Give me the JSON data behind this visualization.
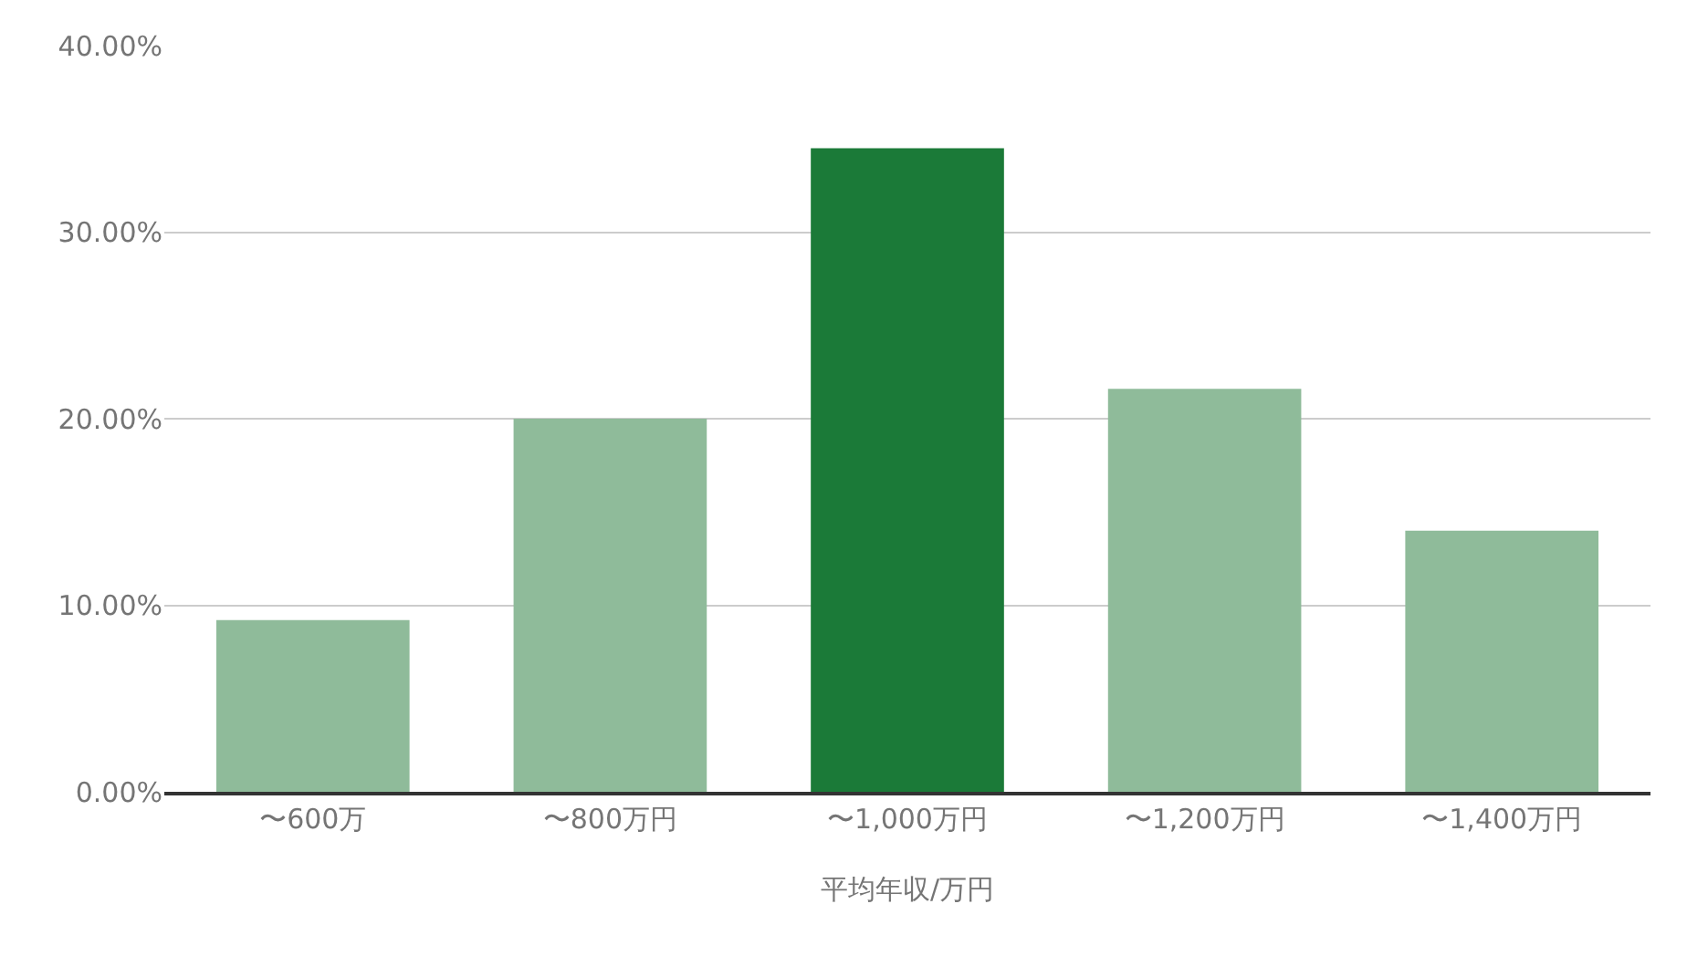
{
  "chart_data": {
    "type": "bar",
    "xlabel": "平均年収/万円",
    "categories": [
      "〜600万",
      "〜800万円",
      "〜1,000万円",
      "〜1,200万円",
      "〜1,400万円"
    ],
    "values": [
      9.2,
      20.0,
      34.5,
      21.6,
      14.0
    ],
    "colors": [
      "#8fbb9a",
      "#8fbb9a",
      "#1b7a38",
      "#8fbb9a",
      "#8fbb9a"
    ],
    "ylim": [
      0,
      40
    ],
    "yticks": [
      {
        "value": 0,
        "label": "0.00%"
      },
      {
        "value": 10,
        "label": "10.00%"
      },
      {
        "value": 20,
        "label": "20.00%"
      },
      {
        "value": 30,
        "label": "30.00%"
      },
      {
        "value": 40,
        "label": "40.00%"
      }
    ],
    "grid": "y"
  }
}
